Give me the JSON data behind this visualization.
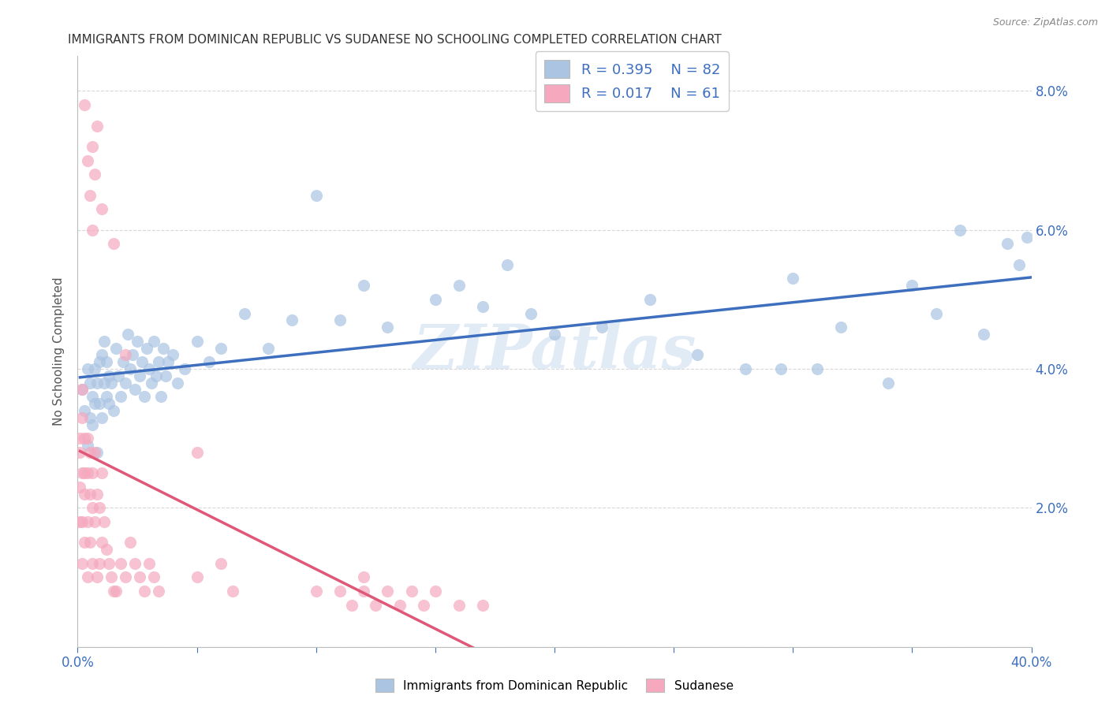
{
  "title": "IMMIGRANTS FROM DOMINICAN REPUBLIC VS SUDANESE NO SCHOOLING COMPLETED CORRELATION CHART",
  "source": "Source: ZipAtlas.com",
  "ylabel": "No Schooling Completed",
  "xlim": [
    0.0,
    0.4
  ],
  "ylim": [
    0.0,
    0.085
  ],
  "color_blue": "#aac4e2",
  "color_pink": "#f5a8be",
  "line_blue": "#3d6fbe",
  "line_pink": "#e05878",
  "legend_r1": "R = 0.395",
  "legend_n1": "N = 82",
  "legend_r2": "R = 0.017",
  "legend_n2": "N = 61",
  "watermark": "ZIPatlas",
  "background_color": "#ffffff",
  "grid_color": "#d8d8d8",
  "blue_x": [
    0.002,
    0.003,
    0.004,
    0.004,
    0.005,
    0.005,
    0.006,
    0.006,
    0.007,
    0.007,
    0.008,
    0.008,
    0.009,
    0.009,
    0.01,
    0.01,
    0.011,
    0.011,
    0.012,
    0.012,
    0.013,
    0.013,
    0.014,
    0.015,
    0.016,
    0.017,
    0.018,
    0.019,
    0.02,
    0.021,
    0.022,
    0.023,
    0.024,
    0.025,
    0.026,
    0.027,
    0.028,
    0.029,
    0.03,
    0.031,
    0.032,
    0.033,
    0.034,
    0.035,
    0.036,
    0.037,
    0.038,
    0.04,
    0.042,
    0.045,
    0.05,
    0.055,
    0.06,
    0.07,
    0.08,
    0.09,
    0.1,
    0.11,
    0.12,
    0.13,
    0.15,
    0.16,
    0.17,
    0.18,
    0.19,
    0.2,
    0.22,
    0.24,
    0.26,
    0.28,
    0.3,
    0.32,
    0.34,
    0.35,
    0.36,
    0.37,
    0.38,
    0.39,
    0.395,
    0.398,
    0.295,
    0.31
  ],
  "blue_y": [
    0.037,
    0.034,
    0.04,
    0.029,
    0.038,
    0.033,
    0.036,
    0.032,
    0.04,
    0.035,
    0.038,
    0.028,
    0.041,
    0.035,
    0.033,
    0.042,
    0.038,
    0.044,
    0.036,
    0.041,
    0.039,
    0.035,
    0.038,
    0.034,
    0.043,
    0.039,
    0.036,
    0.041,
    0.038,
    0.045,
    0.04,
    0.042,
    0.037,
    0.044,
    0.039,
    0.041,
    0.036,
    0.043,
    0.04,
    0.038,
    0.044,
    0.039,
    0.041,
    0.036,
    0.043,
    0.039,
    0.041,
    0.042,
    0.038,
    0.04,
    0.044,
    0.041,
    0.043,
    0.048,
    0.043,
    0.047,
    0.065,
    0.047,
    0.052,
    0.046,
    0.05,
    0.052,
    0.049,
    0.055,
    0.048,
    0.045,
    0.046,
    0.05,
    0.042,
    0.04,
    0.053,
    0.046,
    0.038,
    0.052,
    0.048,
    0.06,
    0.045,
    0.058,
    0.055,
    0.059,
    0.04,
    0.04
  ],
  "pink_x": [
    0.001,
    0.001,
    0.001,
    0.001,
    0.002,
    0.002,
    0.002,
    0.002,
    0.002,
    0.003,
    0.003,
    0.003,
    0.003,
    0.004,
    0.004,
    0.004,
    0.004,
    0.005,
    0.005,
    0.005,
    0.006,
    0.006,
    0.006,
    0.007,
    0.007,
    0.008,
    0.008,
    0.009,
    0.009,
    0.01,
    0.01,
    0.011,
    0.012,
    0.013,
    0.014,
    0.015,
    0.016,
    0.018,
    0.02,
    0.022,
    0.024,
    0.026,
    0.028,
    0.03,
    0.032,
    0.034,
    0.05,
    0.06,
    0.065,
    0.1,
    0.11,
    0.115,
    0.12,
    0.125,
    0.13,
    0.135,
    0.14,
    0.145,
    0.15,
    0.16,
    0.17
  ],
  "pink_y": [
    0.03,
    0.028,
    0.023,
    0.018,
    0.037,
    0.033,
    0.025,
    0.018,
    0.012,
    0.03,
    0.025,
    0.022,
    0.015,
    0.03,
    0.025,
    0.018,
    0.01,
    0.028,
    0.022,
    0.015,
    0.025,
    0.02,
    0.012,
    0.028,
    0.018,
    0.022,
    0.01,
    0.02,
    0.012,
    0.025,
    0.015,
    0.018,
    0.014,
    0.012,
    0.01,
    0.008,
    0.008,
    0.012,
    0.01,
    0.015,
    0.012,
    0.01,
    0.008,
    0.012,
    0.01,
    0.008,
    0.01,
    0.012,
    0.008,
    0.008,
    0.008,
    0.006,
    0.01,
    0.006,
    0.008,
    0.006,
    0.008,
    0.006,
    0.008,
    0.006,
    0.006
  ],
  "extra_pink_x": [
    0.003,
    0.004,
    0.005,
    0.006,
    0.006,
    0.007,
    0.008,
    0.01,
    0.015,
    0.02,
    0.05,
    0.12
  ],
  "extra_pink_y": [
    0.078,
    0.07,
    0.065,
    0.06,
    0.072,
    0.068,
    0.075,
    0.063,
    0.058,
    0.042,
    0.028,
    0.008
  ]
}
